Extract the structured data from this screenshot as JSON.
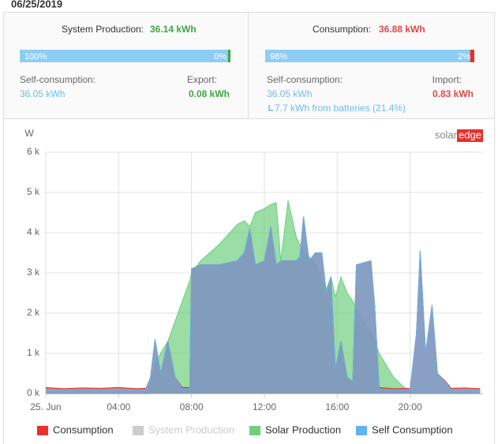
{
  "summary": {
    "date": "06/25/2019",
    "production": {
      "title": "System Production:",
      "total": "36.14 kWh",
      "bar": {
        "values": [
          100,
          0
        ],
        "value_labels": [
          "100%",
          "0%"
        ]
      },
      "left_label": "Self-consumption:",
      "left_value": "36.05 kWh",
      "right_label": "Export:",
      "right_value": "0.08 kWh"
    },
    "consumption": {
      "title": "Consumption:",
      "total": "36.88 kWh",
      "bar": {
        "values": [
          98,
          2
        ],
        "value_labels": [
          "98%",
          "2%"
        ]
      },
      "left_label": "Self-consumption:",
      "left_value": "36.05 kWh",
      "battery_note": "7.7 kWh from batteries (21.4%)",
      "right_label": "Import:",
      "right_value": "0.83 kWh"
    }
  },
  "logo": {
    "part1": "solar",
    "part2": "edge"
  },
  "chart_data": {
    "type": "area",
    "y_label": "W",
    "x": [
      0,
      1,
      2,
      3,
      4,
      5,
      5.5,
      5.75,
      6.0,
      6.3,
      6.7,
      7.1,
      7.5,
      7.9,
      8.0,
      8.5,
      9.5,
      10.5,
      10.9,
      11.2,
      11.5,
      12.0,
      12.35,
      12.65,
      12.9,
      13.3,
      13.75,
      13.95,
      14.15,
      14.45,
      14.8,
      15.15,
      15.4,
      15.65,
      15.9,
      16.2,
      16.55,
      16.85,
      17.05,
      17.85,
      18.05,
      18.3,
      19.1,
      19.8,
      20.0,
      20.35,
      20.55,
      20.85,
      21.2,
      21.5,
      21.95,
      22.25,
      23,
      23.85
    ],
    "series": [
      {
        "name": "Consumption",
        "color": "#e8302c",
        "visible": true,
        "values": [
          150,
          120,
          140,
          130,
          150,
          120,
          130,
          400,
          1350,
          500,
          1300,
          400,
          150,
          150,
          3100,
          3200,
          3200,
          3300,
          3500,
          4100,
          3200,
          3300,
          4150,
          3200,
          3300,
          3300,
          3300,
          3400,
          4400,
          3300,
          3500,
          3500,
          2500,
          2900,
          600,
          1300,
          400,
          300,
          3200,
          3300,
          2200,
          150,
          120,
          130,
          120,
          1500,
          3550,
          1000,
          2200,
          500,
          300,
          130,
          140,
          120
        ]
      },
      {
        "name": "System Production",
        "color": "#cccccc",
        "visible": false
      },
      {
        "name": "Solar Production",
        "color": "#6fcf7f",
        "visible": true,
        "values": [
          0,
          0,
          0,
          0,
          0,
          0,
          0,
          200,
          700,
          1000,
          1300,
          1800,
          2300,
          2800,
          3000,
          3300,
          3700,
          4200,
          4300,
          4150,
          4500,
          4600,
          4700,
          4750,
          3300,
          4800,
          3900,
          3700,
          3500,
          3400,
          3200,
          2800,
          2600,
          2900,
          2400,
          2900,
          2500,
          2300,
          2100,
          1500,
          1300,
          1000,
          400,
          100,
          0,
          0,
          0,
          0,
          0,
          0,
          0,
          0,
          0,
          0
        ]
      },
      {
        "name": "Self Consumption",
        "color": "#5fb4ea",
        "visible": true,
        "values": [
          110,
          90,
          100,
          100,
          110,
          90,
          100,
          400,
          1350,
          500,
          1300,
          400,
          120,
          120,
          3100,
          3200,
          3200,
          3300,
          3500,
          4100,
          3200,
          3300,
          4150,
          3200,
          3300,
          3300,
          3300,
          3400,
          4400,
          3300,
          3500,
          3500,
          2500,
          2900,
          600,
          1300,
          400,
          300,
          3200,
          3300,
          2200,
          120,
          90,
          100,
          90,
          1500,
          3550,
          1000,
          2200,
          500,
          280,
          100,
          110,
          90
        ]
      }
    ],
    "xlim": [
      0,
      24
    ],
    "xticks": [
      {
        "value": 0,
        "label": "25. Jun"
      },
      {
        "value": 4,
        "label": "04:00"
      },
      {
        "value": 8,
        "label": "08:00"
      },
      {
        "value": 12,
        "label": "12:00"
      },
      {
        "value": 16,
        "label": "16:00"
      },
      {
        "value": 20,
        "label": "20:00"
      }
    ],
    "ylim": [
      0,
      6000
    ],
    "yticks": [
      {
        "value": 0,
        "label": "0 k"
      },
      {
        "value": 1000,
        "label": "1 k"
      },
      {
        "value": 2000,
        "label": "2 k"
      },
      {
        "value": 3000,
        "label": "3 k"
      },
      {
        "value": 4000,
        "label": "4 k"
      },
      {
        "value": 5000,
        "label": "5 k"
      },
      {
        "value": 6000,
        "label": "6 k"
      }
    ],
    "grid": true,
    "legend": "bottom"
  }
}
